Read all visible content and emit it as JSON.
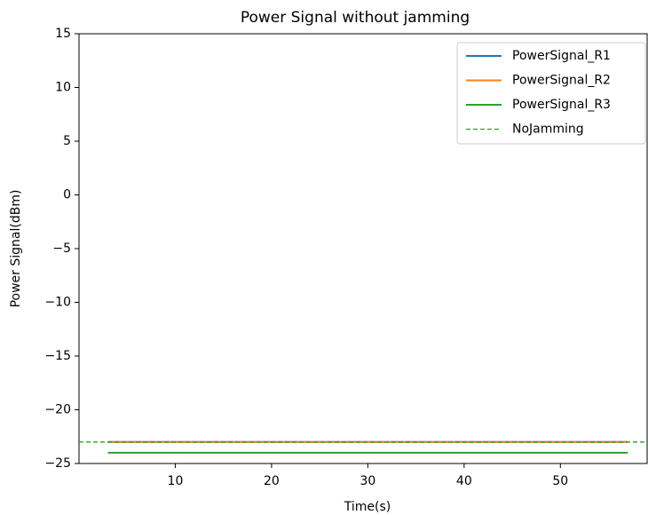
{
  "chart_data": {
    "type": "line",
    "title": "Power Signal without jamming",
    "x_label": "Time(s)",
    "y_label": "Power Signal(dBm)",
    "x": [
      3,
      57
    ],
    "series": [
      {
        "name": "PowerSignal_R1",
        "color": "#1f77b4",
        "values": [
          -23,
          -23
        ]
      },
      {
        "name": "PowerSignal_R2",
        "color": "#ff7f0e",
        "values": [
          -23,
          -23
        ]
      },
      {
        "name": "PowerSignal_R3",
        "color": "#2ca02c",
        "values": [
          -24,
          -24
        ]
      }
    ],
    "reference_line": {
      "name": "NoJamming",
      "value": -23,
      "color": "#2ca02c",
      "style": "dashed"
    },
    "xlim": [
      0,
      59.1
    ],
    "ylim": [
      -25,
      15
    ],
    "xticks": [
      10,
      20,
      30,
      40,
      50
    ],
    "yticks": [
      {
        "value": -25,
        "label": "−25"
      },
      {
        "value": -20,
        "label": "−20"
      },
      {
        "value": -15,
        "label": "−15"
      },
      {
        "value": -10,
        "label": "−10"
      },
      {
        "value": -5,
        "label": "−5"
      },
      0,
      5,
      10,
      15
    ],
    "legend": "upper right"
  }
}
